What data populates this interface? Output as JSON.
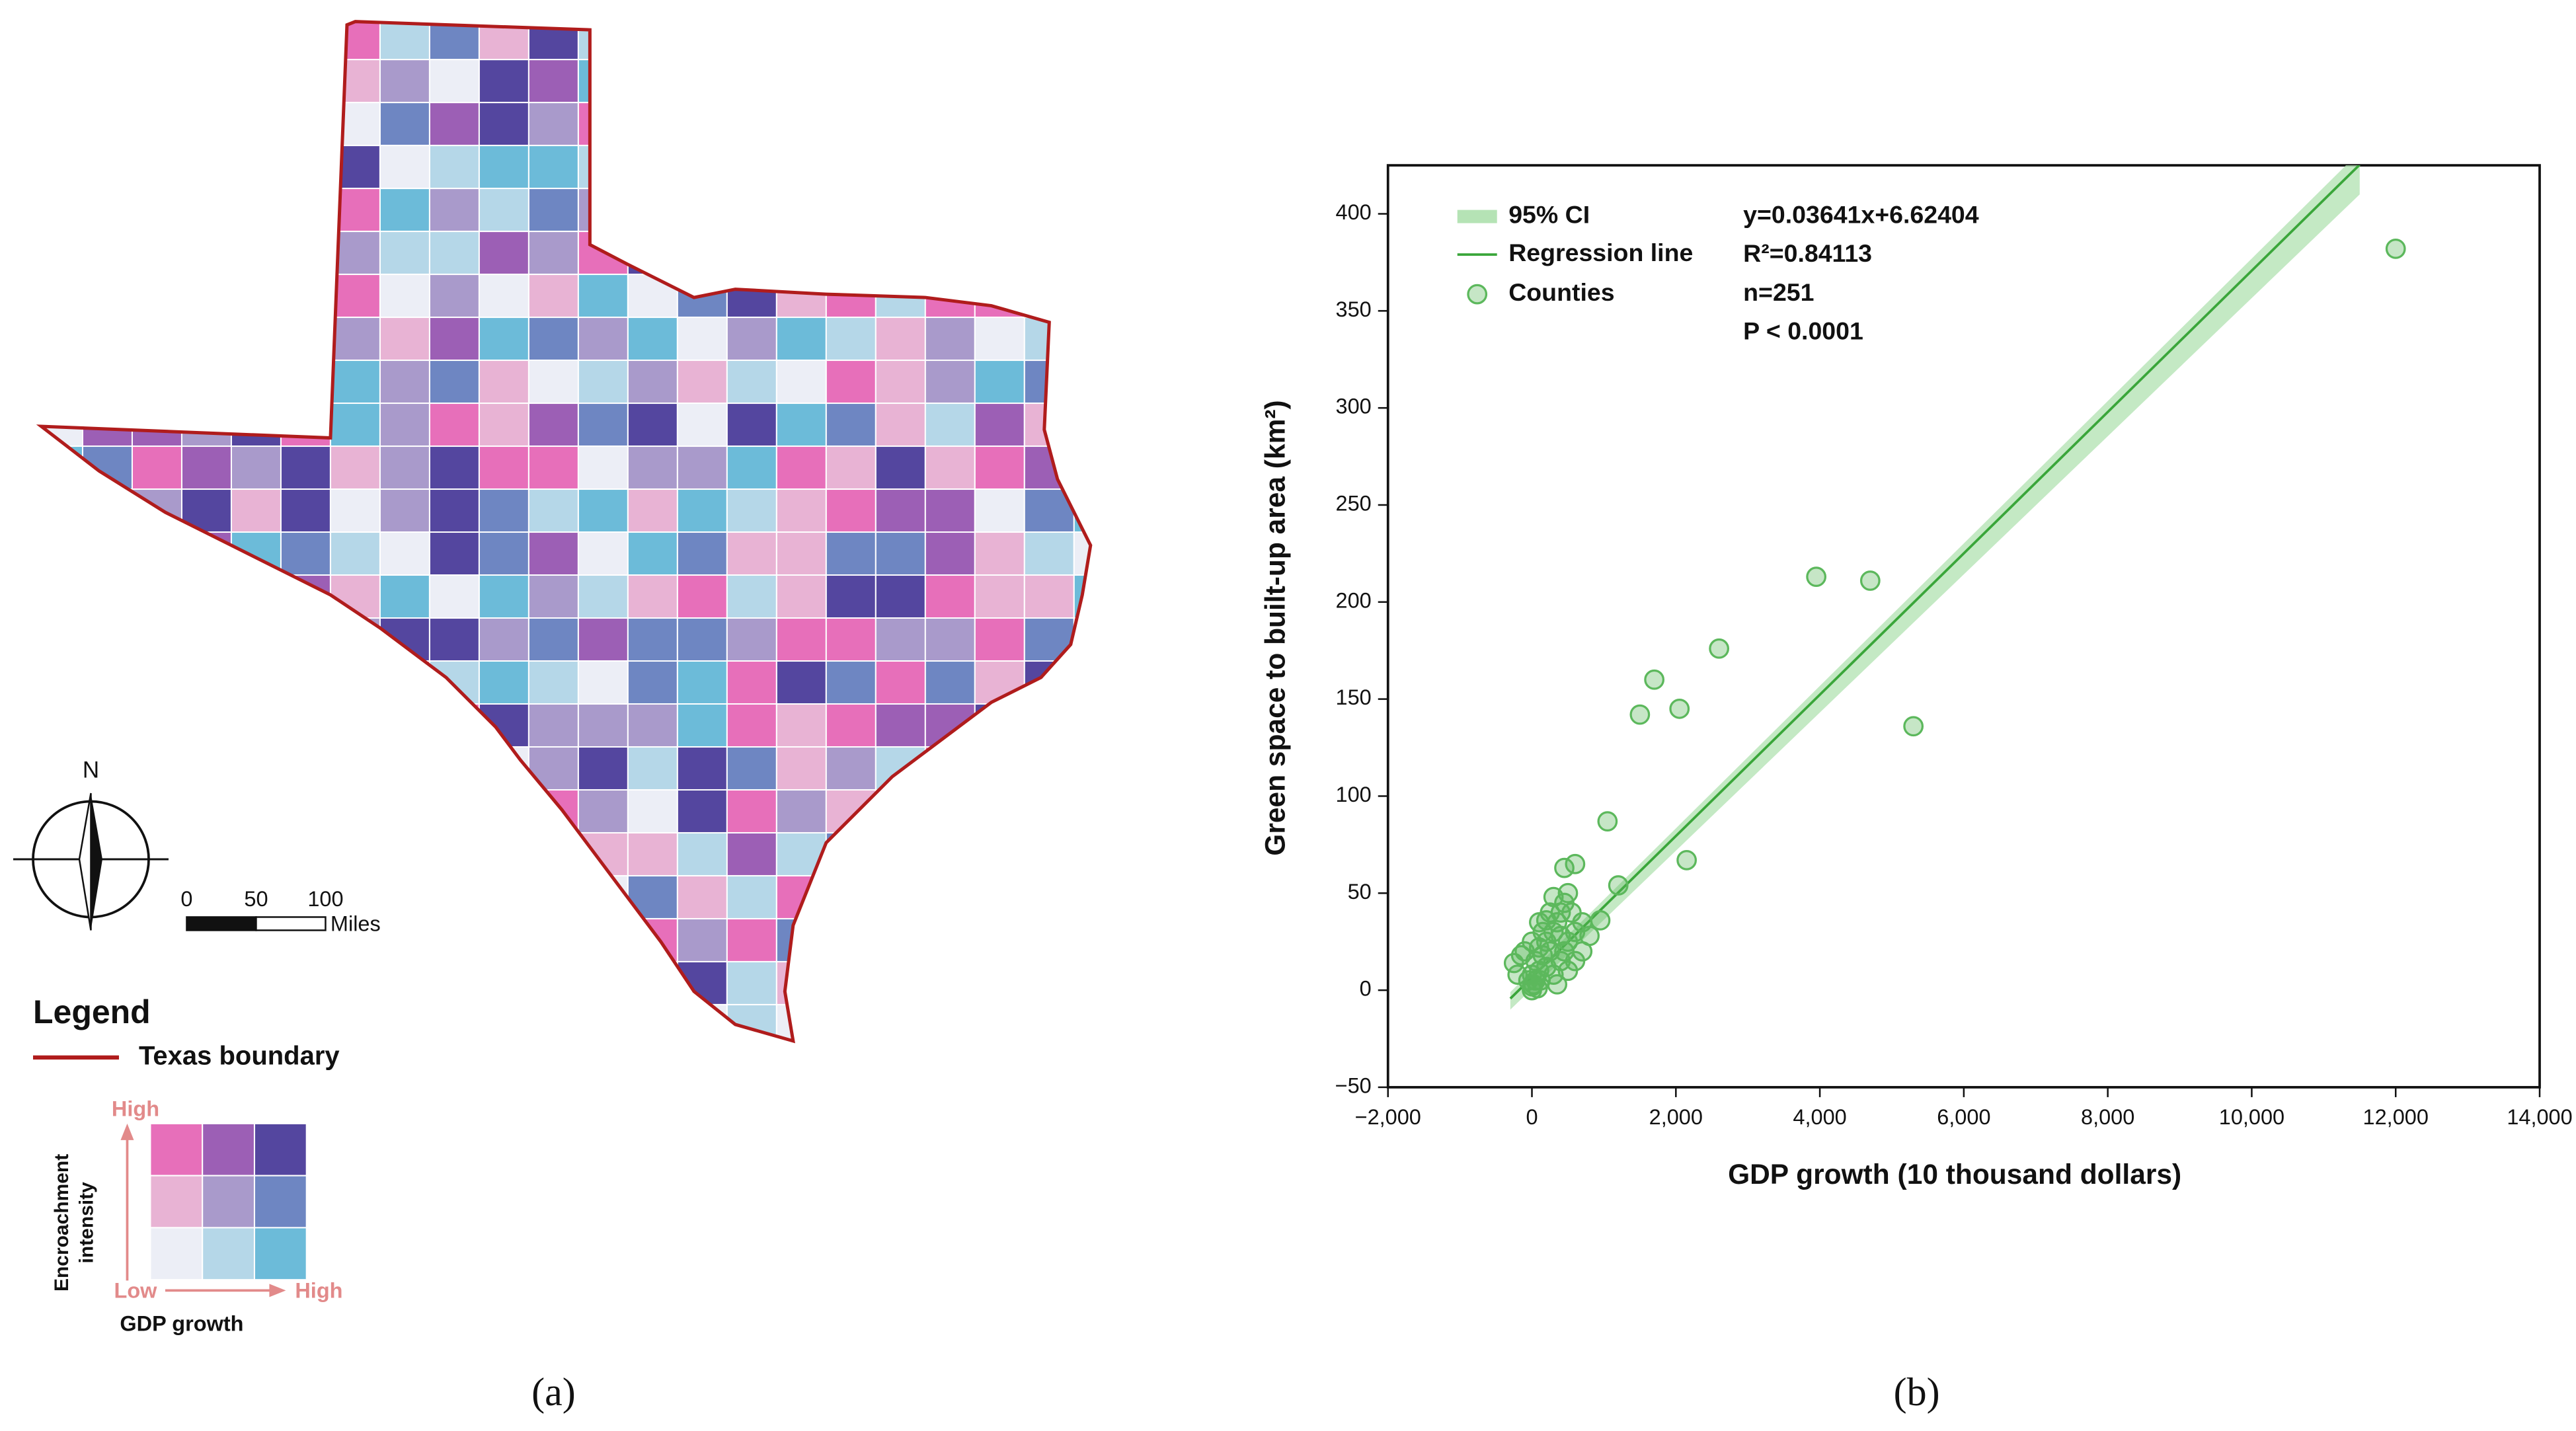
{
  "map": {
    "north": "N",
    "scale_ticks": [
      0,
      50,
      100
    ],
    "scale_unit": "Miles",
    "legend_title": "Legend",
    "boundary_label": "Texas boundary",
    "boundary_color": "#b01c1c",
    "y_high": "High",
    "y_axis_label": [
      "Encroachment",
      "intensity"
    ],
    "low": "Low",
    "x_high": "High",
    "x_axis_label": "GDP growth",
    "legend_colors": [
      "#e76fba",
      "#9c5fb5",
      "#54469f",
      "#e8b3d4",
      "#a99acb",
      "#6e86c2",
      "#eceef6",
      "#b5d7e8",
      "#6cbbd9"
    ],
    "panel_label": "(a)"
  },
  "chart_data": {
    "type": "scatter",
    "xlabel": "GDP growth  (10 thousand dollars)",
    "ylabel": "Green space to built-up area  (km²)",
    "xlim": [
      -2000,
      14000
    ],
    "xticks": [
      {
        "value": -2000,
        "label": "−2,000"
      },
      0,
      {
        "value": 2000,
        "label": "2,000"
      },
      {
        "value": 4000,
        "label": "4,000"
      },
      {
        "value": 6000,
        "label": "6,000"
      },
      {
        "value": 8000,
        "label": "8,000"
      },
      {
        "value": 10000,
        "label": "10,000"
      },
      {
        "value": 12000,
        "label": "12,000"
      },
      {
        "value": 14000,
        "label": "14,000"
      }
    ],
    "ylim": [
      -50,
      425
    ],
    "yticks": [
      {
        "value": -50,
        "label": "−50"
      },
      0,
      50,
      100,
      150,
      200,
      250,
      300,
      350,
      400
    ],
    "series": [
      {
        "name": "Counties",
        "color": "#5cb85c",
        "x": [
          12000,
          5300,
          4700,
          3950,
          2600,
          2150,
          2050,
          1700,
          1500,
          1050,
          1200,
          950,
          600,
          450,
          500,
          450,
          300,
          400,
          200,
          100,
          700,
          600,
          500,
          300,
          250,
          150,
          100,
          50,
          0,
          0,
          -50,
          -250,
          -200,
          -150,
          0,
          100,
          200,
          300,
          350,
          400,
          500,
          600,
          700,
          800,
          50,
          150,
          250,
          -100,
          0,
          20,
          80,
          120,
          200,
          400,
          550,
          450,
          350
        ],
        "values": [
          382,
          136,
          211,
          213,
          176,
          67,
          145,
          160,
          142,
          87,
          54,
          36,
          65,
          63,
          50,
          45,
          48,
          40,
          36,
          35,
          20,
          15,
          25,
          30,
          20,
          18,
          10,
          5,
          2,
          0,
          5,
          14,
          8,
          18,
          25,
          22,
          12,
          8,
          3,
          15,
          10,
          30,
          35,
          28,
          15,
          30,
          40,
          20,
          8,
          3,
          1,
          5,
          25,
          28,
          40,
          20,
          35
        ]
      }
    ],
    "regression": {
      "name": "Regression line",
      "color": "#3aa63a",
      "slope": 0.03641,
      "intercept": 6.62404,
      "x": [
        -300,
        11500
      ]
    },
    "ci": {
      "name": "95% CI",
      "color": "#b5e3b5",
      "x": [
        -300,
        11500
      ],
      "lower": [
        -10,
        410
      ],
      "upper": [
        -1,
        432
      ]
    },
    "stats": [
      "y=0.03641x+6.62404",
      "R²=0.84113",
      "n=251",
      "P < 0.0001"
    ],
    "panel_label": "(b)"
  }
}
